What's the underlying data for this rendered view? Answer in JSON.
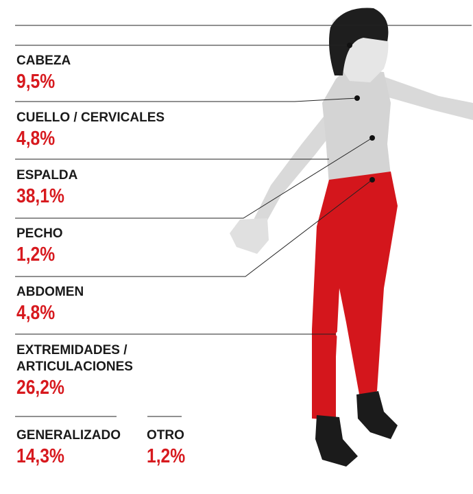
{
  "items": [
    {
      "lines": [
        "CABEZA"
      ],
      "value": "9,5%"
    },
    {
      "lines": [
        "CUELLO / CERVICALES"
      ],
      "value": "4,8%"
    },
    {
      "lines": [
        "ESPALDA"
      ],
      "value": "38,1%"
    },
    {
      "lines": [
        "PECHO"
      ],
      "value": "1,2%"
    },
    {
      "lines": [
        "ABDOMEN"
      ],
      "value": "4,8%"
    },
    {
      "lines": [
        "EXTREMIDADES /",
        "ARTICULACIONES"
      ],
      "value": "26,2%"
    },
    {
      "lines": [
        "GENERALIZADO"
      ],
      "value": "14,3%"
    },
    {
      "lines": [
        "OTRO"
      ],
      "value": "1,2%"
    }
  ]
}
